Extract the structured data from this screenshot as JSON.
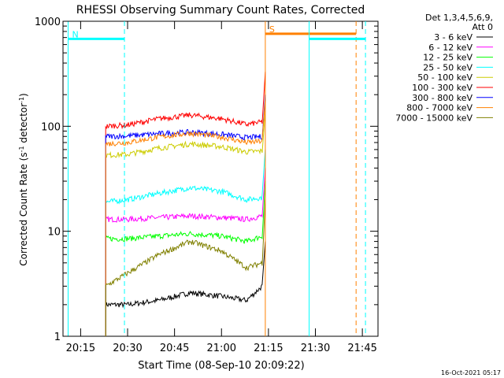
{
  "chart_data": {
    "type": "line",
    "title": "RHESSI Observing Summary Count Rates, Corrected",
    "xlabel": "Start Time (08-Sep-10 20:09:22)",
    "ylabel_main": "Corrected Count Rate (s",
    "ylabel_sup1": "-1",
    "ylabel_mid": " detector",
    "ylabel_sup2": "-1",
    "ylabel_end": ")",
    "x_unit": "minutes",
    "x_range": [
      "20:09:22",
      "21:50:00"
    ],
    "y_scale": "log",
    "ylim": [
      1,
      1000
    ],
    "x_ticks": [
      "20:15",
      "20:30",
      "20:45",
      "21:00",
      "21:15",
      "21:30",
      "21:45"
    ],
    "y_ticks": [
      "1",
      "10",
      "100",
      "1000"
    ],
    "legend_header": [
      "Det 1,3,4,5,6,9,",
      "Att 0"
    ],
    "legend_position": "right",
    "footer_date": "16-Oct-2021 05:17",
    "series": [
      {
        "name": "3 - 6 keV",
        "color": "#000000",
        "x": [
          "20:23",
          "20:30",
          "20:40",
          "20:50",
          "21:00",
          "21:08",
          "21:13",
          "21:14"
        ],
        "values": [
          2.0,
          2.0,
          2.2,
          2.6,
          2.4,
          2.2,
          3.0,
          8.0
        ]
      },
      {
        "name": "6 - 12 keV",
        "color": "#ff00ff",
        "x": [
          "20:23",
          "20:30",
          "20:40",
          "20:50",
          "21:00",
          "21:08",
          "21:13",
          "21:14"
        ],
        "values": [
          13,
          13,
          13.5,
          14,
          13.5,
          13,
          14,
          40
        ]
      },
      {
        "name": "12 - 25 keV",
        "color": "#00ff00",
        "x": [
          "20:23",
          "20:30",
          "20:40",
          "20:50",
          "21:00",
          "21:08",
          "21:13",
          "21:14"
        ],
        "values": [
          8.5,
          8.5,
          9,
          9.5,
          9,
          8,
          9,
          30
        ]
      },
      {
        "name": "25 - 50 keV",
        "color": "#00ffff",
        "x": [
          "20:23",
          "20:30",
          "20:40",
          "20:50",
          "21:00",
          "21:08",
          "21:13",
          "21:14"
        ],
        "values": [
          19,
          20,
          23,
          26,
          24,
          20,
          21,
          60
        ]
      },
      {
        "name": "50 - 100 keV",
        "color": "#cccc00",
        "x": [
          "20:23",
          "20:30",
          "20:40",
          "20:50",
          "21:00",
          "21:08",
          "21:13",
          "21:14"
        ],
        "values": [
          53,
          54,
          62,
          68,
          64,
          57,
          58,
          140
        ]
      },
      {
        "name": "100 - 300 keV",
        "color": "#ff0000",
        "x": [
          "20:23",
          "20:30",
          "20:40",
          "20:50",
          "21:00",
          "21:08",
          "21:13",
          "21:14"
        ],
        "values": [
          100,
          103,
          118,
          128,
          118,
          104,
          110,
          330
        ]
      },
      {
        "name": "300 - 800 keV",
        "color": "#0000ff",
        "x": [
          "20:23",
          "20:30",
          "20:40",
          "20:50",
          "21:00",
          "21:08",
          "21:13",
          "21:14"
        ],
        "values": [
          80,
          81,
          85,
          88,
          84,
          78,
          80,
          200
        ]
      },
      {
        "name": "800 - 7000 keV",
        "color": "#ff8000",
        "x": [
          "20:23",
          "20:30",
          "20:40",
          "20:50",
          "21:00",
          "21:08",
          "21:13",
          "21:14"
        ],
        "values": [
          68,
          70,
          79,
          86,
          79,
          70,
          72,
          180
        ]
      },
      {
        "name": "7000 - 15000 keV",
        "color": "#808000",
        "x": [
          "20:23",
          "20:30",
          "20:40",
          "20:50",
          "21:00",
          "21:08",
          "21:13",
          "21:14"
        ],
        "values": [
          3.0,
          4.0,
          6.0,
          8.0,
          6.5,
          4.5,
          5.0,
          20
        ]
      }
    ],
    "annotations": [
      {
        "label": "N",
        "color": "#00ffff",
        "x_solid": "20:11",
        "x_dashed": "20:29",
        "y": 680
      },
      {
        "label": "S",
        "color": "#ff8000",
        "x_solid": "21:14",
        "x_dashed": "21:43",
        "y": 760
      },
      {
        "label": "",
        "color": "#00ffff",
        "x_solid": "21:28",
        "x_dashed": "21:46",
        "y": 680
      }
    ]
  }
}
